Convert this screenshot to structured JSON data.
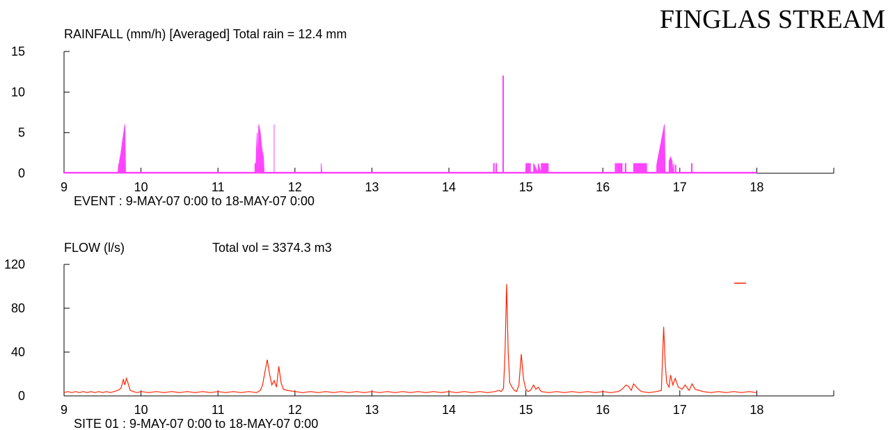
{
  "page": {
    "title": "FINGLAS STREAM"
  },
  "colors": {
    "rainfall": "#ff44ff",
    "flow": "#ff2200",
    "axis": "#000000"
  },
  "chart_data": [
    {
      "type": "area",
      "title": "RAINFALL (mm/h) [Averaged]   Total rain =   12.4 mm",
      "caption": "EVENT  :   9-MAY-07  0:00  to  18-MAY-07  0:00",
      "xlim": [
        9,
        19
      ],
      "ylim": [
        0,
        15
      ],
      "xticks": [
        9,
        10,
        11,
        12,
        13,
        14,
        15,
        16,
        17,
        18
      ],
      "yticks": [
        0,
        5,
        10,
        15
      ],
      "series": [
        {
          "x": [
            9,
            9.7,
            9.71,
            9.71,
            9.71,
            9.72,
            9.72,
            9.74,
            9.76,
            9.78,
            9.79,
            9.8,
            11.48,
            11.48,
            11.49,
            11.49,
            11.5,
            11.51,
            11.51,
            11.53,
            11.55,
            11.57,
            11.59,
            11.6,
            11.73,
            11.73,
            11.73,
            11.74,
            12.34,
            12.34,
            12.34,
            12.35,
            14.58,
            14.58,
            14.59,
            14.59,
            14.61,
            14.61,
            14.62,
            14.62,
            14.7,
            14.7,
            14.71,
            14.71,
            14.72,
            14.72,
            15.0,
            15.0,
            15.03,
            15.03,
            15.06,
            15.06,
            15.1,
            15.1,
            15.16,
            15.16,
            15.2,
            15.2,
            15.29,
            15.29,
            16.16,
            16.16,
            16.17,
            16.17,
            16.18,
            16.18,
            16.19,
            16.19,
            16.25,
            16.25,
            16.29,
            16.29,
            16.3,
            16.3,
            16.35,
            16.35,
            16.4,
            16.4,
            16.57,
            16.57,
            16.58,
            16.58,
            16.7,
            16.7,
            16.72,
            16.74,
            16.76,
            16.78,
            16.8,
            16.81,
            16.86,
            16.86,
            16.88,
            16.9,
            16.91,
            16.91,
            16.92,
            16.92,
            16.94,
            16.94,
            16.95,
            16.95,
            17.15,
            17.15,
            17.16,
            17.16,
            18
          ],
          "values": [
            0,
            0,
            1.2,
            0,
            1.2,
            0,
            1.5,
            2.5,
            4,
            5.3,
            6,
            0,
            0,
            1.2,
            1.2,
            0,
            3,
            5,
            0,
            6,
            5,
            3,
            2,
            0,
            0,
            6,
            0,
            0,
            0,
            1.2,
            1.2,
            0,
            0,
            1.2,
            1.2,
            0,
            0,
            1.2,
            1.2,
            0,
            0,
            12,
            12,
            0,
            0,
            0,
            0,
            1.2,
            1.2,
            1.2,
            1.2,
            0,
            0,
            1.2,
            0,
            1.2,
            0,
            1.2,
            1.2,
            0,
            0,
            1.2,
            1.2,
            0,
            0,
            1.2,
            1.2,
            1.2,
            1.2,
            0,
            0,
            1.2,
            1.2,
            0,
            0,
            0,
            0,
            1.2,
            1.2,
            0,
            0,
            0,
            0,
            1,
            2,
            3,
            4,
            5,
            6,
            0,
            0,
            1.5,
            2,
            1.5,
            0,
            0,
            1.2,
            0,
            0,
            1,
            1,
            0,
            0,
            1.2,
            1.2,
            0,
            0
          ]
        }
      ]
    },
    {
      "type": "line",
      "title": "FLOW (l/s)",
      "subtitle": "Total vol =  3374.3 m3",
      "caption": "SITE 01 :  9-MAY-07  0:00  to  18-MAY-07  0:00",
      "xlim": [
        9,
        19
      ],
      "ylim": [
        0,
        120
      ],
      "xticks": [
        9,
        10,
        11,
        12,
        13,
        14,
        15,
        16,
        17,
        18
      ],
      "yticks": [
        0,
        40,
        80,
        120
      ],
      "legend_marker": "top-right",
      "series": [
        {
          "x": [
            9.0,
            9.05,
            9.1,
            9.15,
            9.2,
            9.25,
            9.3,
            9.35,
            9.4,
            9.45,
            9.5,
            9.55,
            9.6,
            9.65,
            9.7,
            9.74,
            9.77,
            9.79,
            9.81,
            9.83,
            9.86,
            9.9,
            9.95,
            10.0,
            10.1,
            10.2,
            10.3,
            10.4,
            10.5,
            10.6,
            10.7,
            10.8,
            10.9,
            11.0,
            11.1,
            11.2,
            11.3,
            11.4,
            11.5,
            11.55,
            11.58,
            11.61,
            11.64,
            11.67,
            11.7,
            11.73,
            11.76,
            11.79,
            11.82,
            11.85,
            11.9,
            12.0,
            12.1,
            12.2,
            12.3,
            12.4,
            12.5,
            12.6,
            12.7,
            12.8,
            12.9,
            13.0,
            13.1,
            13.2,
            13.3,
            13.4,
            13.5,
            13.6,
            13.7,
            13.8,
            13.9,
            14.0,
            14.1,
            14.2,
            14.3,
            14.4,
            14.5,
            14.6,
            14.65,
            14.68,
            14.71,
            14.73,
            14.75,
            14.77,
            14.79,
            14.82,
            14.85,
            14.88,
            14.91,
            14.94,
            14.97,
            15.0,
            15.03,
            15.06,
            15.1,
            15.13,
            15.16,
            15.2,
            15.3,
            15.4,
            15.5,
            15.6,
            15.7,
            15.8,
            15.9,
            16.0,
            16.1,
            16.2,
            16.25,
            16.3,
            16.33,
            16.37,
            16.4,
            16.45,
            16.5,
            16.6,
            16.7,
            16.76,
            16.79,
            16.81,
            16.83,
            16.86,
            16.88,
            16.91,
            16.94,
            16.98,
            17.03,
            17.07,
            17.12,
            17.16,
            17.2,
            17.3,
            17.4,
            17.5,
            17.6,
            17.7,
            17.8,
            17.9,
            18.0
          ],
          "values": [
            3,
            4,
            3,
            4,
            3,
            4,
            3,
            4,
            3,
            4,
            3,
            4,
            3,
            4,
            5,
            7,
            15,
            10,
            16,
            12,
            5,
            4,
            3,
            4,
            3,
            4,
            3,
            4,
            3,
            4,
            3,
            4,
            3,
            4,
            3,
            4,
            3,
            4,
            3,
            5,
            10,
            22,
            33,
            20,
            10,
            14,
            8,
            27,
            12,
            6,
            5,
            4,
            3,
            4,
            3,
            4,
            3,
            4,
            3,
            4,
            3,
            4,
            3,
            4,
            3,
            4,
            3,
            4,
            3,
            4,
            3,
            4,
            3,
            4,
            3,
            4,
            3,
            4,
            5,
            4,
            7,
            40,
            102,
            40,
            12,
            8,
            5,
            4,
            10,
            38,
            15,
            6,
            4,
            5,
            10,
            6,
            8,
            4,
            3,
            4,
            3,
            4,
            3,
            4,
            3,
            4,
            3,
            4,
            6,
            10,
            9,
            5,
            11,
            7,
            4,
            3,
            4,
            5,
            63,
            30,
            12,
            8,
            19,
            10,
            16,
            8,
            6,
            10,
            5,
            11,
            6,
            4,
            3,
            4,
            3,
            4,
            3,
            4,
            3
          ]
        }
      ]
    }
  ]
}
